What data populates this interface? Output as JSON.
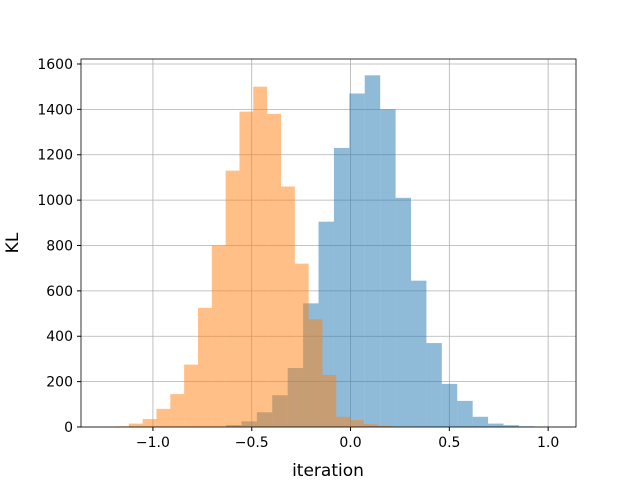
{
  "chart_data": {
    "type": "histogram",
    "xlabel": "iteration",
    "ylabel": "KL",
    "grid": true,
    "opacity": 0.5,
    "xlim": [
      -1.364,
      1.141
    ],
    "ylim": [
      0,
      1622
    ],
    "xticks": [
      {
        "value": -1.0,
        "label": "−1.0"
      },
      {
        "value": -0.5,
        "label": "−0.5"
      },
      {
        "value": 0.0,
        "label": "0.0"
      },
      {
        "value": 0.5,
        "label": "0.5"
      },
      {
        "value": 1.0,
        "label": "1.0"
      }
    ],
    "yticks": [
      0,
      200,
      400,
      600,
      800,
      1000,
      1200,
      1400,
      1600
    ],
    "series": [
      {
        "color": "#1f77b4",
        "bins": [
          -0.63,
          -0.552,
          -0.474,
          -0.396,
          -0.318,
          -0.24,
          -0.162,
          -0.084,
          -0.006,
          0.072,
          0.15,
          0.228,
          0.306,
          0.384,
          0.462,
          0.54,
          0.618,
          0.696,
          0.774,
          0.852,
          0.93,
          1.008
        ],
        "values": [
          8,
          25,
          65,
          140,
          260,
          545,
          905,
          1230,
          1470,
          1550,
          1400,
          1010,
          645,
          370,
          190,
          115,
          45,
          15,
          8,
          3,
          1
        ]
      },
      {
        "color": "#ff7f0e",
        "bins": [
          -1.192,
          -1.122,
          -1.052,
          -0.982,
          -0.912,
          -0.842,
          -0.772,
          -0.702,
          -0.632,
          -0.562,
          -0.492,
          -0.422,
          -0.352,
          -0.282,
          -0.212,
          -0.142,
          -0.072,
          -0.002,
          0.068,
          0.138,
          0.208,
          0.278
        ],
        "values": [
          3,
          15,
          35,
          80,
          145,
          275,
          525,
          800,
          1130,
          1390,
          1500,
          1380,
          1060,
          720,
          475,
          230,
          45,
          30,
          12,
          5,
          2
        ]
      }
    ]
  }
}
